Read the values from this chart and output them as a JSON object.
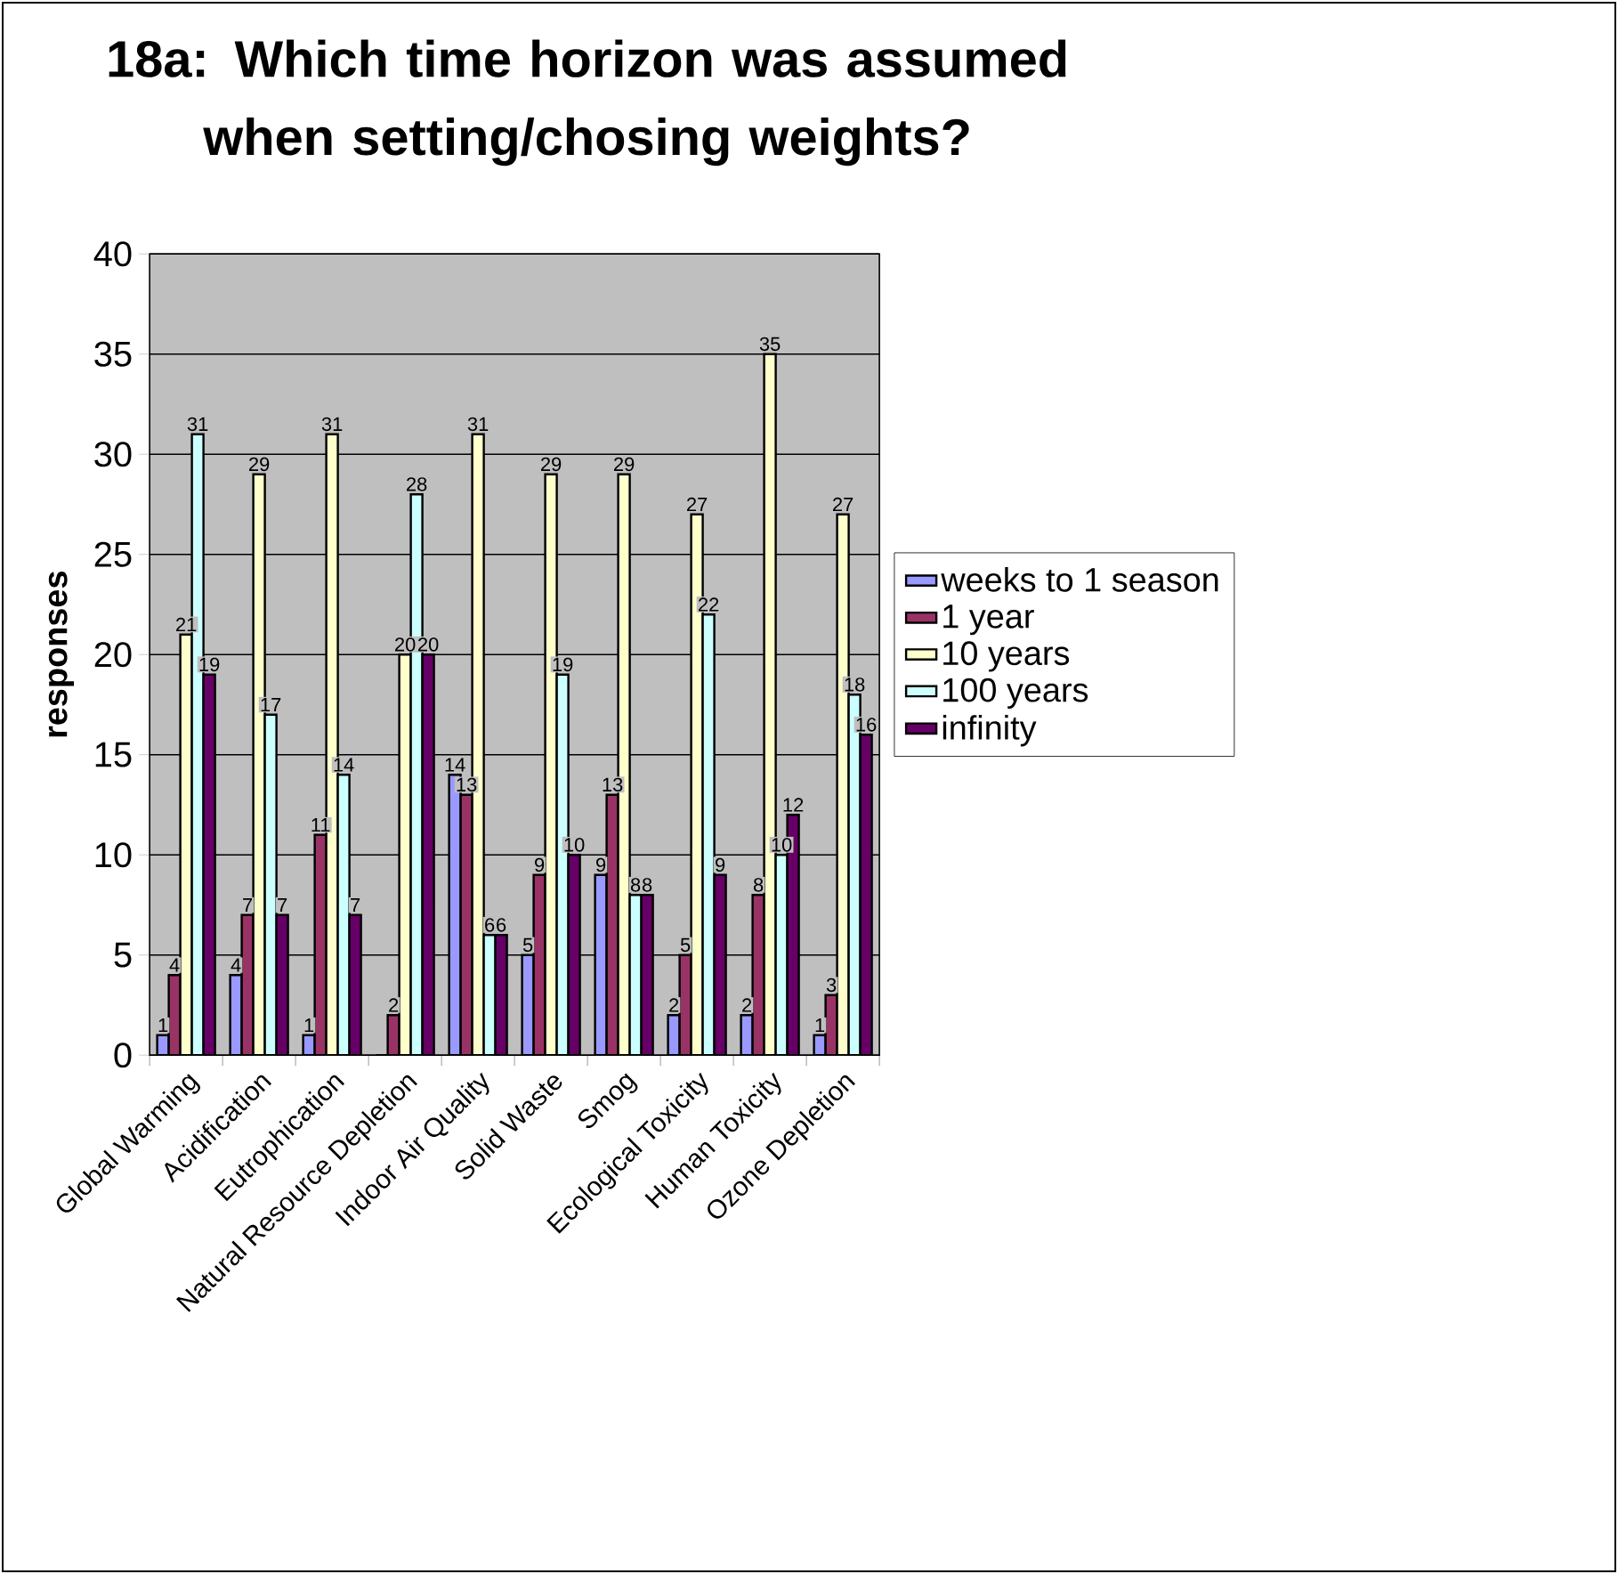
{
  "chart_data": {
    "type": "bar",
    "title": "18a: Which time horizon was assumed when setting/chosing weights?",
    "ylabel": "responses",
    "categories": [
      "Global Warming",
      "Acidification",
      "Eutrophication",
      "Natural Resource Depletion",
      "Indoor Air Quality",
      "Solid Waste",
      "Smog",
      "Ecological Toxicity",
      "Human Toxicity",
      "Ozone Depletion"
    ],
    "series": [
      {
        "name": "weeks to 1 season",
        "color": "#9999ff",
        "values": [
          1,
          4,
          1,
          0,
          14,
          5,
          9,
          2,
          2,
          1
        ],
        "value_labels": [
          "1",
          "4",
          "1",
          null,
          "14",
          "5",
          "9",
          "2",
          "2",
          "1"
        ]
      },
      {
        "name": "1 year",
        "color": "#993366",
        "values": [
          4,
          7,
          11,
          2,
          13,
          9,
          13,
          5,
          8,
          3
        ],
        "value_labels": [
          "4",
          "7",
          "11",
          "2",
          "13",
          "9",
          "13",
          "5",
          "8",
          "3"
        ]
      },
      {
        "name": "10 years",
        "color": "#ffffcc",
        "values": [
          21,
          29,
          31,
          20,
          31,
          29,
          29,
          27,
          35,
          27
        ],
        "value_labels": [
          "21",
          "29",
          "31",
          "20",
          "31",
          "29",
          "29",
          "27",
          "35",
          "27"
        ]
      },
      {
        "name": "100 years",
        "color": "#ccffff",
        "values": [
          31,
          17,
          14,
          28,
          6,
          19,
          8,
          22,
          10,
          18
        ],
        "value_labels": [
          "31",
          "17",
          "14",
          "28",
          "6",
          "19",
          "8",
          "22",
          "10",
          "18"
        ]
      },
      {
        "name": "infinity",
        "color": "#660066",
        "values": [
          19,
          7,
          7,
          20,
          6,
          10,
          8,
          9,
          12,
          16
        ],
        "value_labels": [
          "19",
          "7",
          "7",
          "20",
          "6",
          "10",
          "8",
          "9",
          "12",
          "16"
        ]
      }
    ],
    "ylim": [
      0,
      40
    ],
    "yticks": [
      0,
      5,
      10,
      15,
      20,
      25,
      30,
      35,
      40
    ],
    "grid": "y",
    "legend": "right"
  }
}
